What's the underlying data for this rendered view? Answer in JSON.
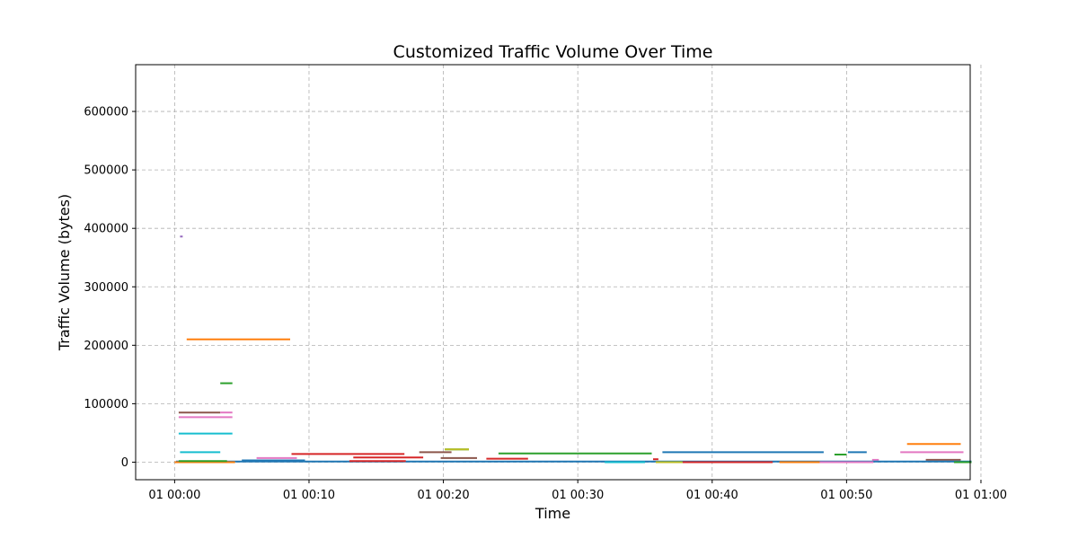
{
  "chart_data": {
    "type": "line",
    "title": "Customized Traffic Volume Over Time",
    "xlabel": "Time",
    "ylabel": "Traffic Volume (bytes)",
    "x_unit": "minutes after 00:00",
    "xlim": [
      -2.9,
      59.2
    ],
    "ylim": [
      -30000,
      680000
    ],
    "grid": true,
    "x_ticks": [
      {
        "value": 0,
        "label": "01 00:00"
      },
      {
        "value": 10,
        "label": "01 00:10"
      },
      {
        "value": 20,
        "label": "01 00:20"
      },
      {
        "value": 30,
        "label": "01 00:30"
      },
      {
        "value": 40,
        "label": "01 00:40"
      },
      {
        "value": 50,
        "label": "01 00:50"
      },
      {
        "value": 60,
        "label": "01 01:00"
      }
    ],
    "y_ticks": [
      {
        "value": 0,
        "label": "0"
      },
      {
        "value": 100000,
        "label": "100000"
      },
      {
        "value": 200000,
        "label": "200000"
      },
      {
        "value": 300000,
        "label": "300000"
      },
      {
        "value": 400000,
        "label": "400000"
      },
      {
        "value": 500000,
        "label": "500000"
      },
      {
        "value": 600000,
        "label": "600000"
      }
    ],
    "series": [
      {
        "color": "#9467bd",
        "x": [
          0.4,
          0.6
        ],
        "y": [
          386000,
          386000
        ]
      },
      {
        "color": "#ff7f0e",
        "x": [
          0.9,
          8.6
        ],
        "y": [
          210000,
          210000
        ]
      },
      {
        "color": "#2ca02c",
        "x": [
          3.4,
          4.3
        ],
        "y": [
          135000,
          135000
        ]
      },
      {
        "color": "#8c564b",
        "x": [
          0.3,
          3.4
        ],
        "y": [
          85000,
          85000
        ]
      },
      {
        "color": "#e377c2",
        "x": [
          3.4,
          4.3
        ],
        "y": [
          85000,
          85000
        ]
      },
      {
        "color": "#e377c2",
        "x": [
          0.3,
          4.3
        ],
        "y": [
          77000,
          77000
        ]
      },
      {
        "color": "#17becf",
        "x": [
          0.3,
          4.3
        ],
        "y": [
          49000,
          49000
        ]
      },
      {
        "color": "#17becf",
        "x": [
          0.4,
          3.4
        ],
        "y": [
          17000,
          17000
        ]
      },
      {
        "color": "#ff7f0e",
        "x": [
          54.5,
          58.5
        ],
        "y": [
          31000,
          31000
        ]
      },
      {
        "color": "#2ca02c",
        "x": [
          20.1,
          21.9
        ],
        "y": [
          22000,
          22000
        ]
      },
      {
        "color": "#bcbd22",
        "x": [
          20.1,
          21.9
        ],
        "y": [
          22000,
          22000
        ]
      },
      {
        "color": "#8c564b",
        "x": [
          18.2,
          20.6
        ],
        "y": [
          17000,
          17000
        ]
      },
      {
        "color": "#1f77b4",
        "x": [
          36.3,
          48.3
        ],
        "y": [
          17000,
          17000
        ]
      },
      {
        "color": "#1f77b4",
        "x": [
          50.1,
          51.5
        ],
        "y": [
          17000,
          17000
        ]
      },
      {
        "color": "#e377c2",
        "x": [
          54.0,
          58.7
        ],
        "y": [
          17000,
          17000
        ]
      },
      {
        "color": "#2ca02c",
        "x": [
          24.1,
          35.5
        ],
        "y": [
          15000,
          15000
        ]
      },
      {
        "color": "#d62728",
        "x": [
          8.7,
          17.1
        ],
        "y": [
          14000,
          14000
        ]
      },
      {
        "color": "#2ca02c",
        "x": [
          49.1,
          50.0
        ],
        "y": [
          13000,
          13000
        ]
      },
      {
        "color": "#d62728",
        "x": [
          13.3,
          18.5
        ],
        "y": [
          8000,
          8000
        ]
      },
      {
        "color": "#8c564b",
        "x": [
          19.8,
          22.5
        ],
        "y": [
          7000,
          7000
        ]
      },
      {
        "color": "#d62728",
        "x": [
          23.2,
          26.3
        ],
        "y": [
          6000,
          6000
        ]
      },
      {
        "color": "#e377c2",
        "x": [
          6.1,
          9.1
        ],
        "y": [
          7000,
          7000
        ]
      },
      {
        "color": "#d62728",
        "x": [
          35.6,
          36.0
        ],
        "y": [
          5000,
          5000
        ]
      },
      {
        "color": "#8c564b",
        "x": [
          55.9,
          58.5
        ],
        "y": [
          4000,
          4000
        ]
      },
      {
        "color": "#e377c2",
        "x": [
          51.9,
          52.4
        ],
        "y": [
          4000,
          4000
        ]
      },
      {
        "color": "#1f77b4",
        "x": [
          0.1,
          59.3
        ],
        "y": [
          1000,
          1000
        ]
      },
      {
        "color": "#ff7f0e",
        "x": [
          0.0,
          4.5
        ],
        "y": [
          0,
          0
        ]
      },
      {
        "color": "#2ca02c",
        "x": [
          0.3,
          3.9
        ],
        "y": [
          2000,
          2000
        ]
      },
      {
        "color": "#d62728",
        "x": [
          13.0,
          17.2
        ],
        "y": [
          2000,
          2000
        ]
      },
      {
        "color": "#1f77b4",
        "x": [
          5.0,
          9.7
        ],
        "y": [
          3000,
          3000
        ]
      },
      {
        "color": "#17becf",
        "x": [
          32.0,
          35.0
        ],
        "y": [
          0,
          0
        ]
      },
      {
        "color": "#bcbd22",
        "x": [
          35.8,
          37.8
        ],
        "y": [
          0,
          0
        ]
      },
      {
        "color": "#d62728",
        "x": [
          37.8,
          44.5
        ],
        "y": [
          0,
          0
        ]
      },
      {
        "color": "#ff7f0e",
        "x": [
          45.0,
          48.0
        ],
        "y": [
          0,
          0
        ]
      },
      {
        "color": "#e377c2",
        "x": [
          48.0,
          52.0
        ],
        "y": [
          0,
          0
        ]
      },
      {
        "color": "#2ca02c",
        "x": [
          58.0,
          59.3
        ],
        "y": [
          0,
          0
        ]
      }
    ]
  }
}
